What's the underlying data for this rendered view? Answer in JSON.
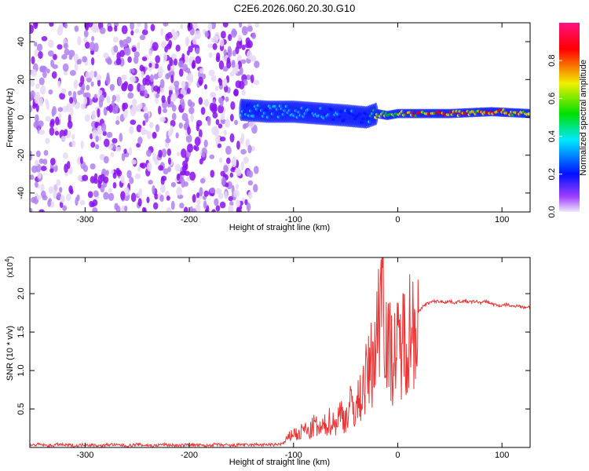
{
  "chart_data": [
    {
      "type": "heatmap",
      "title": "C2E6.2026.060.20.30.G10",
      "xlabel": "Height of straight line (km)",
      "ylabel": "Frequency (Hz)",
      "xlim": [
        -353,
        127
      ],
      "ylim": [
        -50,
        50
      ],
      "xticks": [
        -300,
        -200,
        -100,
        0,
        100
      ],
      "xtick_labels": [
        "-300",
        "-200",
        "-100",
        "0",
        "100"
      ],
      "yticks": [
        40,
        20,
        0,
        -20,
        -40
      ],
      "ytick_labels": [
        "40",
        "20",
        "0",
        "-20",
        "-40"
      ],
      "noise_region_km": [
        -353,
        -135
      ],
      "ridge": {
        "x": [
          -150,
          -125,
          -100,
          -75,
          -50,
          -30,
          -20,
          -10,
          0,
          50,
          90,
          127
        ],
        "freq_hz": [
          4,
          3,
          3,
          2,
          1,
          0,
          2,
          1,
          2,
          2,
          3,
          2
        ],
        "amplitude": [
          0.45,
          0.5,
          0.5,
          0.45,
          0.4,
          0.35,
          0.8,
          0.7,
          0.85,
          0.9,
          0.9,
          0.9
        ]
      },
      "colorbar": {
        "label": "Normalized spectral amplitude",
        "ticks": [
          0.0,
          0.2,
          0.4,
          0.6,
          0.8
        ],
        "tick_labels": [
          "0.0",
          "0.2",
          "0.4",
          "0.6",
          "0.8"
        ],
        "range": [
          0,
          1
        ],
        "colors": [
          "#e8d8f8",
          "#8a00ff",
          "#0010ff",
          "#00e0ff",
          "#00e000",
          "#f0f000",
          "#ff0000",
          "#ff1080"
        ]
      }
    },
    {
      "type": "line",
      "xlabel": "Height of straight line (km)",
      "ylabel": "SNR (10 * v/v)",
      "y_multiplier": "(x10",
      "y_multiplier_exp": "4",
      "y_multiplier_close": ")",
      "xlim": [
        -353,
        127
      ],
      "ylim": [
        0,
        2.47
      ],
      "xticks": [
        -300,
        -200,
        -100,
        0,
        100
      ],
      "xtick_labels": [
        "-300",
        "-200",
        "-100",
        "0",
        "100"
      ],
      "yticks": [
        0.5,
        1.0,
        1.5,
        2.0
      ],
      "ytick_labels": [
        "0.5",
        "1.0",
        "1.5",
        "2.0"
      ],
      "color": "#ee3333",
      "x": [
        -350,
        -345,
        -340,
        -335,
        -330,
        -325,
        -320,
        -315,
        -310,
        -305,
        -300,
        -295,
        -290,
        -285,
        -280,
        -275,
        -270,
        -265,
        -260,
        -255,
        -250,
        -245,
        -240,
        -235,
        -230,
        -225,
        -220,
        -215,
        -210,
        -205,
        -200,
        -195,
        -190,
        -185,
        -180,
        -175,
        -170,
        -165,
        -160,
        -155,
        -150,
        -145,
        -140,
        -135,
        -130,
        -125,
        -120,
        -115,
        -110,
        -105,
        -100,
        -95,
        -90,
        -85,
        -80,
        -75,
        -70,
        -65,
        -60,
        -55,
        -50,
        -45,
        -40,
        -35,
        -30,
        -25,
        -20,
        -15,
        -10,
        -5,
        0,
        5,
        10,
        15,
        20,
        25,
        30,
        35,
        40,
        45,
        50,
        55,
        60,
        65,
        70,
        75,
        80,
        85,
        90,
        95,
        100,
        105,
        110,
        115,
        120,
        125
      ],
      "y": [
        0.03,
        0.04,
        0.03,
        0.02,
        0.03,
        0.04,
        0.03,
        0.03,
        0.02,
        0.03,
        0.04,
        0.03,
        0.03,
        0.02,
        0.03,
        0.04,
        0.03,
        0.03,
        0.02,
        0.03,
        0.04,
        0.03,
        0.03,
        0.02,
        0.03,
        0.04,
        0.03,
        0.03,
        0.02,
        0.03,
        0.04,
        0.03,
        0.03,
        0.02,
        0.03,
        0.04,
        0.03,
        0.03,
        0.02,
        0.03,
        0.04,
        0.03,
        0.03,
        0.04,
        0.03,
        0.04,
        0.03,
        0.04,
        0.05,
        0.12,
        0.2,
        0.15,
        0.25,
        0.18,
        0.3,
        0.22,
        0.28,
        0.35,
        0.3,
        0.45,
        0.38,
        0.55,
        0.5,
        0.7,
        0.9,
        1.1,
        1.4,
        2.4,
        1.3,
        1.2,
        1.25,
        1.4,
        1.55,
        1.6,
        1.75,
        1.85,
        1.88,
        1.9,
        1.9,
        1.89,
        1.9,
        1.88,
        1.9,
        1.9,
        1.89,
        1.9,
        1.88,
        1.9,
        1.87,
        1.85,
        1.84,
        1.86,
        1.83,
        1.85,
        1.82,
        1.83
      ]
    }
  ]
}
